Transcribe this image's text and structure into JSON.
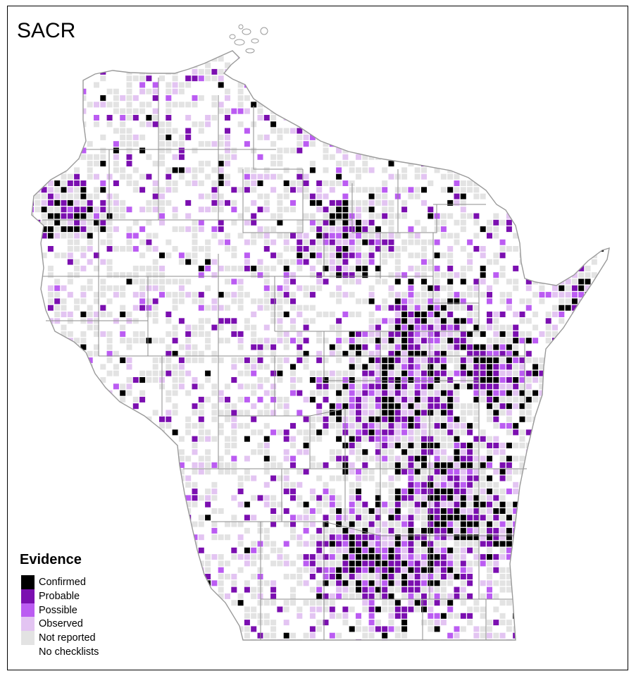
{
  "title": "SACR",
  "legend": {
    "title": "Evidence",
    "items": [
      {
        "label": "Confirmed",
        "color": "#000000"
      },
      {
        "label": "Probable",
        "color": "#7b0fb0"
      },
      {
        "label": "Possible",
        "color": "#bb5cf2"
      },
      {
        "label": "Observed",
        "color": "#e3c4f2"
      },
      {
        "label": "Not reported",
        "color": "#e3e3e3"
      },
      {
        "label": "No checklists",
        "color": "#ffffff"
      }
    ]
  },
  "colors": {
    "border": "#000000",
    "county_lines": "#8c8c8c",
    "state_outline": "#9a9a9a",
    "background": "#ffffff"
  }
}
